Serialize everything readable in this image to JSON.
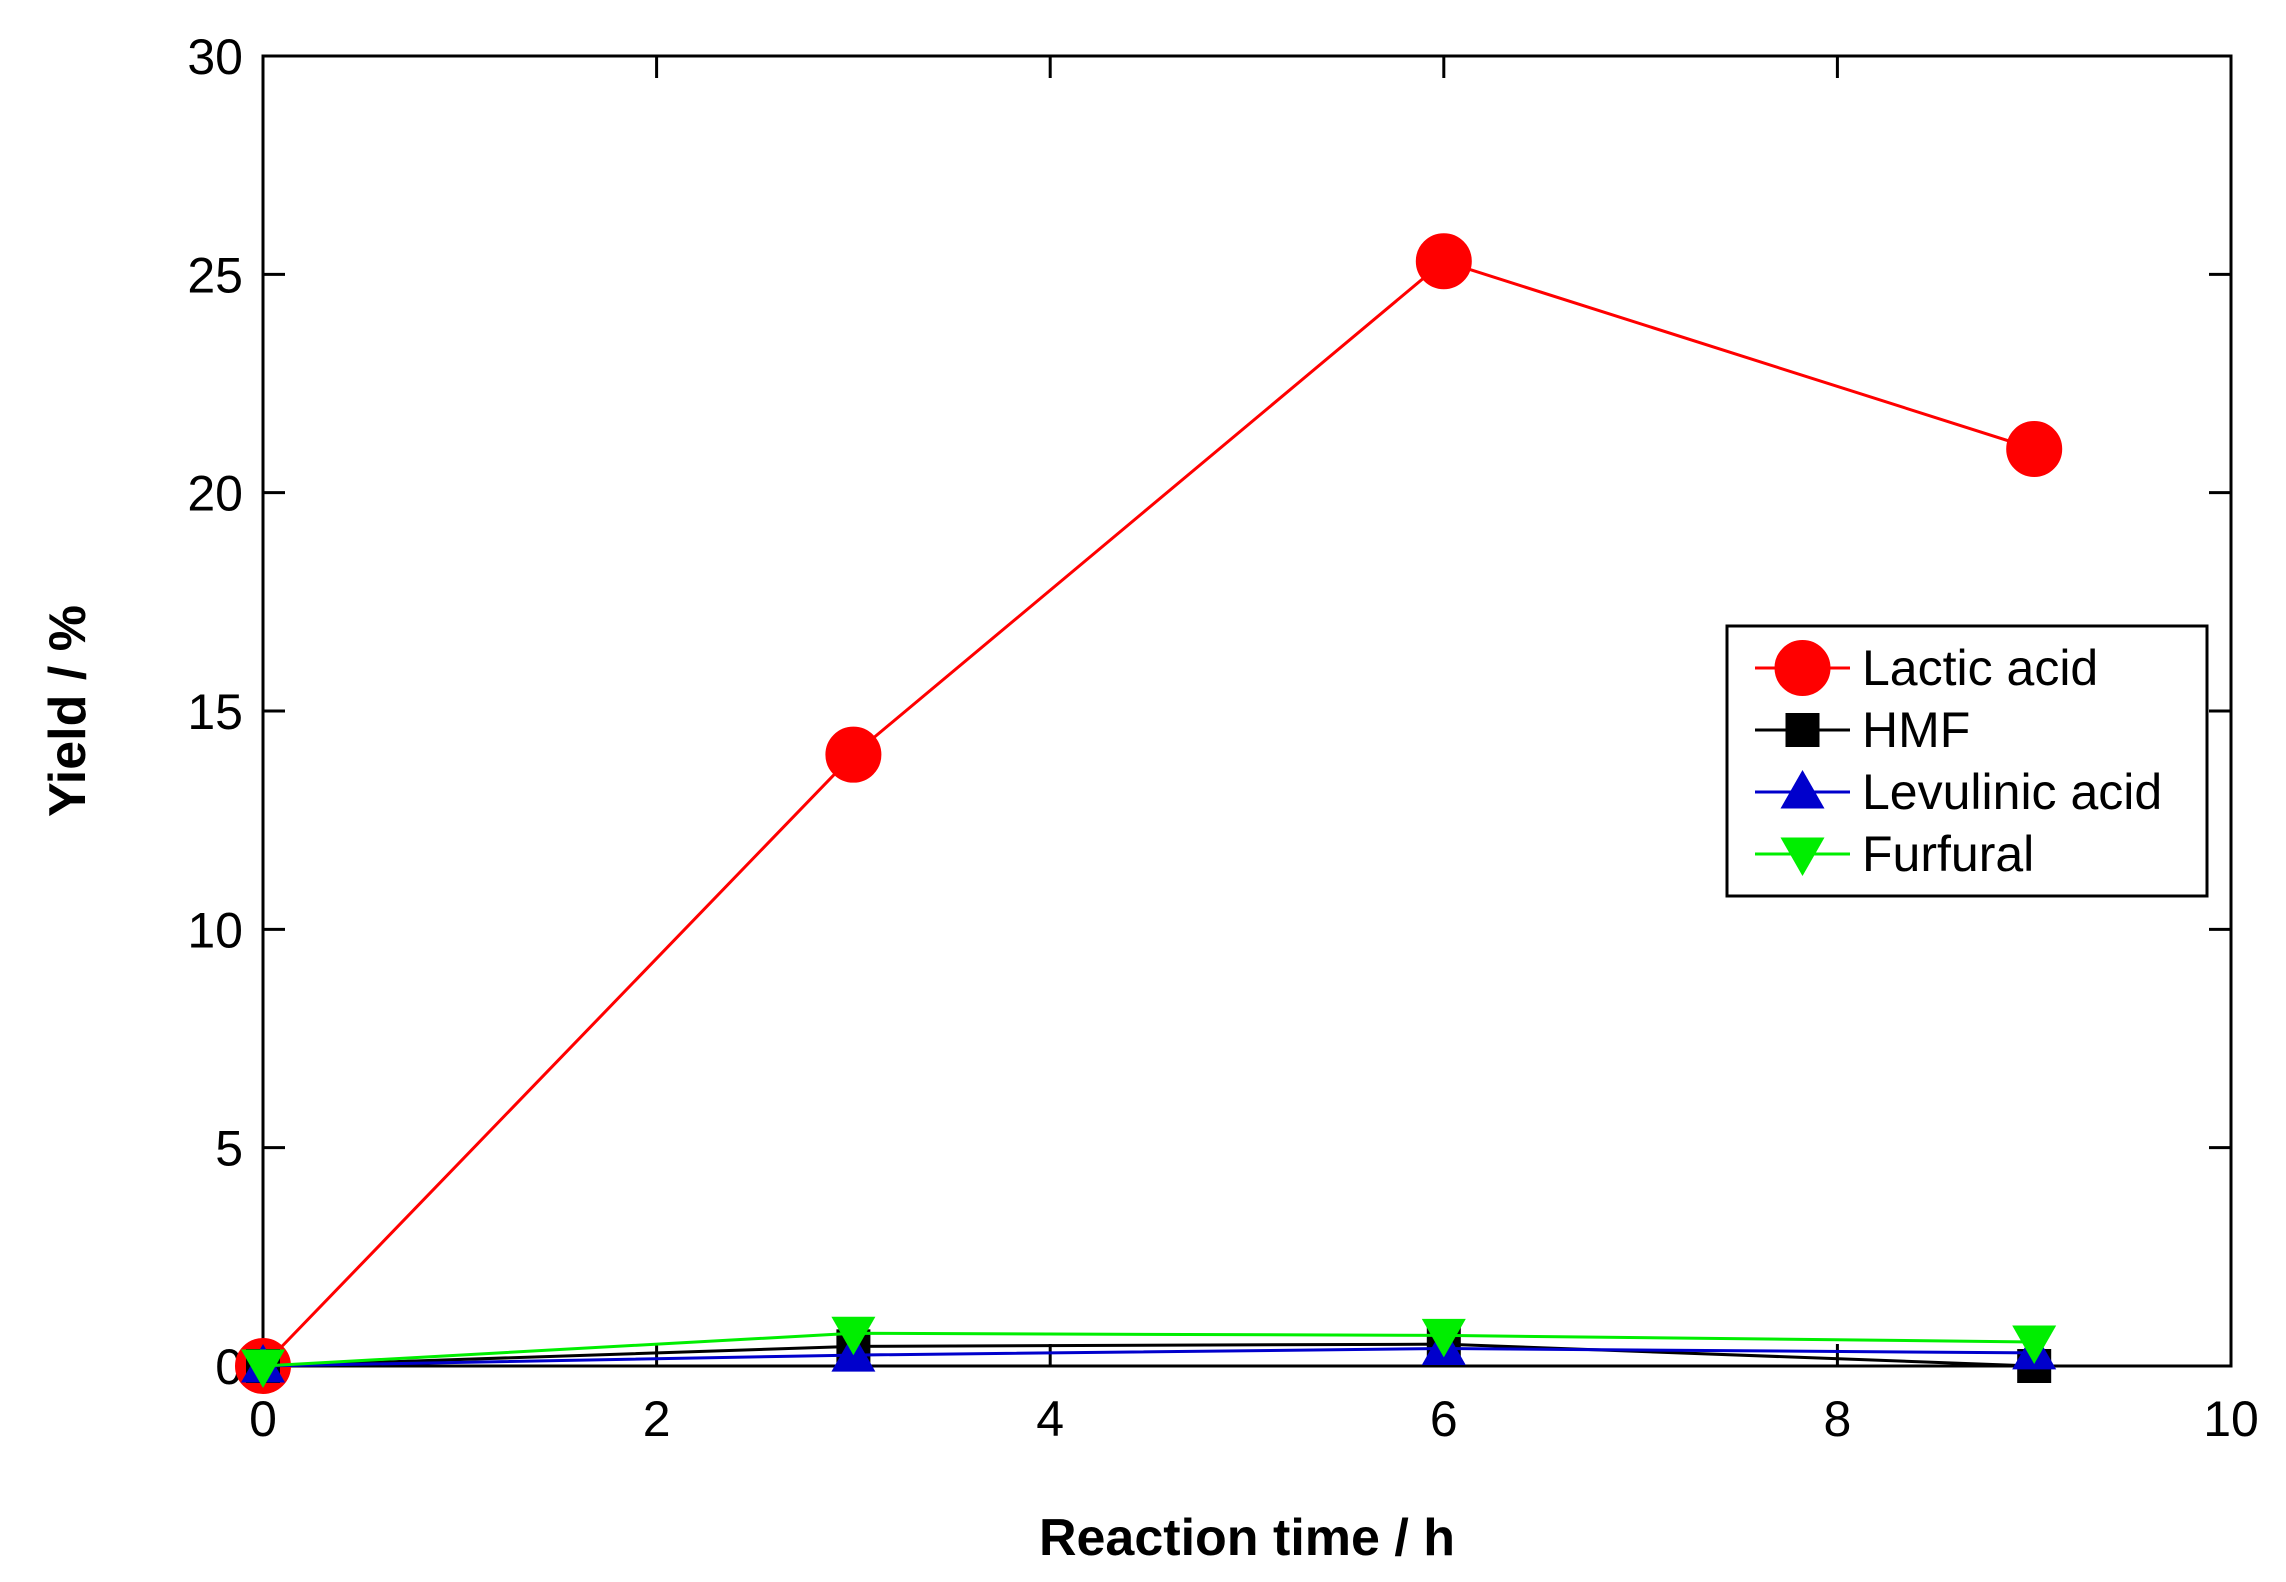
{
  "chart_data": {
    "type": "line",
    "title": "",
    "xlabel": "Reaction time / h",
    "ylabel": "Yield / %",
    "xlim": [
      0,
      10
    ],
    "ylim": [
      0,
      30
    ],
    "xticks": [
      0,
      2,
      4,
      6,
      8,
      10
    ],
    "yticks": [
      0,
      5,
      10,
      15,
      20,
      25,
      30
    ],
    "grid": false,
    "legend_position": "right",
    "x": [
      0,
      3,
      6,
      9
    ],
    "series": [
      {
        "name": "Lactic acid",
        "values": [
          0,
          14.0,
          25.3,
          21.0
        ],
        "color": "#ff0000",
        "marker": "circle"
      },
      {
        "name": "HMF",
        "values": [
          0,
          0.45,
          0.5,
          0.0
        ],
        "color": "#000000",
        "marker": "square"
      },
      {
        "name": "Levulinic acid",
        "values": [
          0,
          0.25,
          0.4,
          0.3
        ],
        "color": "#0000cc",
        "marker": "triangle-up"
      },
      {
        "name": "Furfural",
        "values": [
          0,
          0.75,
          0.7,
          0.55
        ],
        "color": "#00ee00",
        "marker": "triangle-down"
      }
    ]
  }
}
